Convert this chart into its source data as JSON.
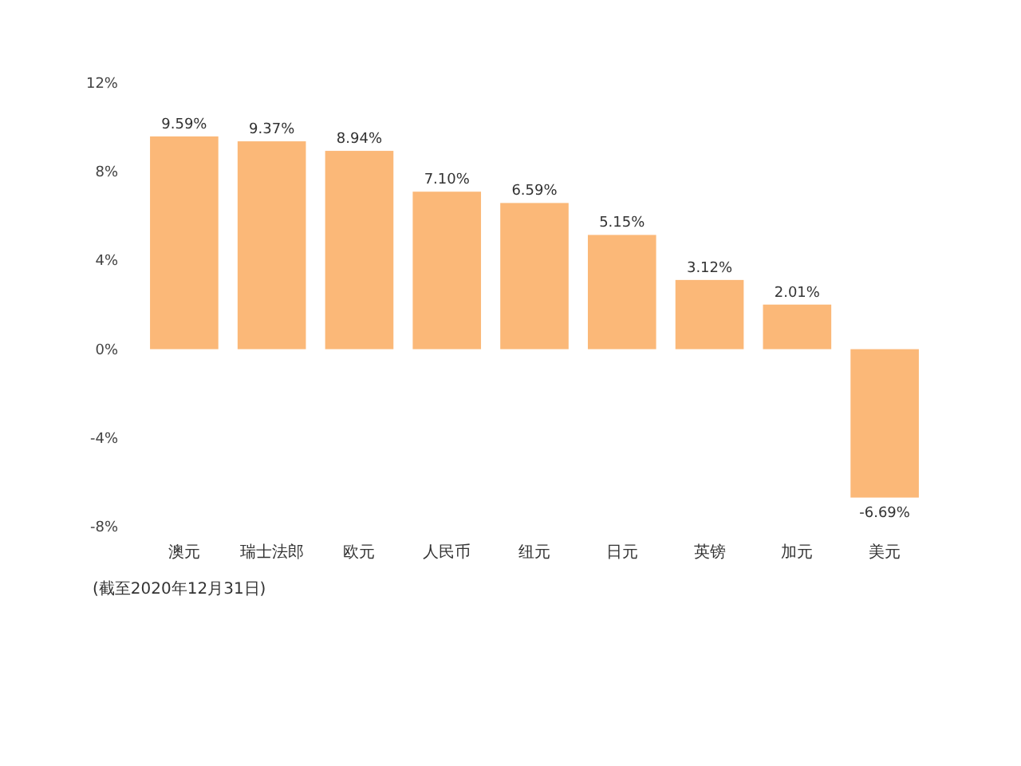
{
  "chart_data": {
    "type": "bar",
    "categories": [
      "澳元",
      "瑞士法郎",
      "欧元",
      "人民币",
      "纽元",
      "日元",
      "英镑",
      "加元",
      "美元"
    ],
    "values": [
      9.59,
      9.37,
      8.94,
      7.1,
      6.59,
      5.15,
      3.12,
      2.01,
      -6.69
    ],
    "value_labels": [
      "9.59%",
      "9.37%",
      "8.94%",
      "7.10%",
      "6.59%",
      "5.15%",
      "3.12%",
      "2.01%",
      "-6.69%"
    ],
    "color": "#fbb878",
    "ylim": [
      -8,
      12
    ],
    "yticks": [
      {
        "value": -8,
        "label": "-8%"
      },
      {
        "value": -4,
        "label": "-4%"
      },
      {
        "value": 0,
        "label": "0%"
      },
      {
        "value": 4,
        "label": "4%"
      },
      {
        "value": 8,
        "label": "8%"
      },
      {
        "value": 12,
        "label": "12%"
      }
    ],
    "grid": false,
    "annotations": [
      "(截至2020年12月31日)"
    ]
  }
}
